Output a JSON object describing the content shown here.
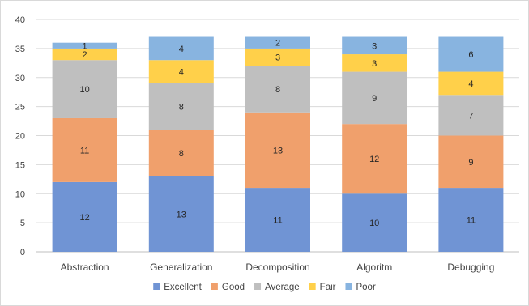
{
  "chart_data": {
    "type": "bar",
    "stacked": true,
    "categories": [
      "Abstraction",
      "Generalization",
      "Decomposition",
      "Algoritm",
      "Debugging"
    ],
    "series": [
      {
        "name": "Excellent",
        "color": "#7094d4",
        "values": [
          12,
          13,
          11,
          10,
          11
        ]
      },
      {
        "name": "Good",
        "color": "#f0a06c",
        "values": [
          11,
          8,
          13,
          12,
          9
        ]
      },
      {
        "name": "Average",
        "color": "#bfbfbf",
        "values": [
          10,
          8,
          8,
          9,
          7
        ]
      },
      {
        "name": "Fair",
        "color": "#ffd04a",
        "values": [
          2,
          4,
          3,
          3,
          4
        ]
      },
      {
        "name": "Poor",
        "color": "#88b4e0",
        "values": [
          1,
          4,
          2,
          3,
          6
        ]
      }
    ],
    "ylim": [
      0,
      40
    ],
    "yticks": [
      0,
      5,
      10,
      15,
      20,
      25,
      30,
      35,
      40
    ],
    "grid": true,
    "legend_position": "bottom",
    "data_labels": true
  }
}
